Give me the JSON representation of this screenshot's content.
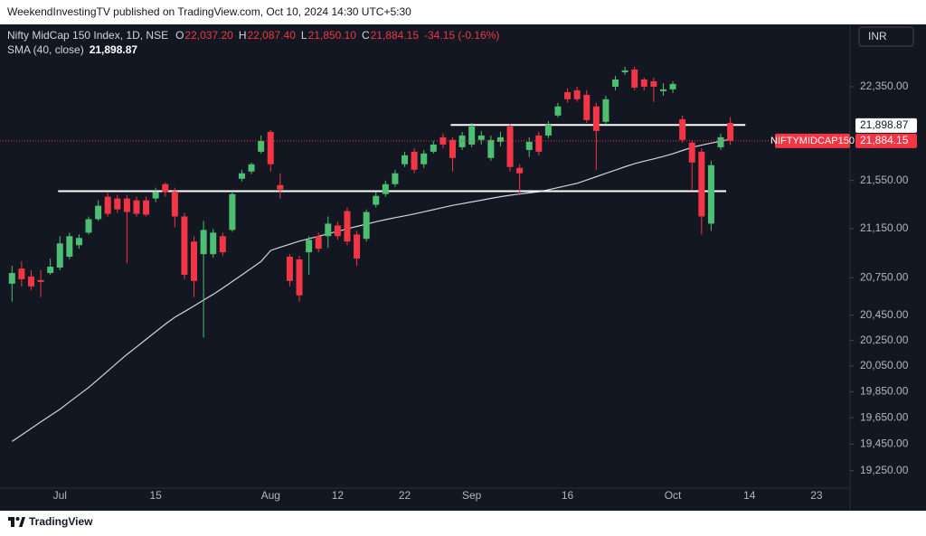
{
  "header": {
    "publisher": "WeekendInvestingTV published on TradingView.com, Oct 10, 2024 14:30 UTC+5:30",
    "footer": "TradingView"
  },
  "chart_data": {
    "type": "candlestick",
    "legend": {
      "symbol": "Nifty MidCap 150 Index, 1D, NSE",
      "fields": [
        {
          "key": "O",
          "text": "22,037.20"
        },
        {
          "key": "H",
          "text": "22,087.40"
        },
        {
          "key": "L",
          "text": "21,850.10"
        },
        {
          "key": "C",
          "text": "21,884.15"
        }
      ],
      "change": "-34.15 (-0.16%)"
    },
    "currency": "INR",
    "categories": [
      null,
      null,
      null,
      null,
      null,
      "Jul",
      null,
      null,
      null,
      null,
      null,
      null,
      null,
      null,
      null,
      "15",
      null,
      null,
      null,
      null,
      null,
      null,
      null,
      null,
      null,
      null,
      null,
      "Aug",
      null,
      null,
      null,
      null,
      null,
      null,
      "12",
      null,
      null,
      null,
      null,
      null,
      null,
      "22",
      null,
      null,
      null,
      null,
      null,
      null,
      "Sep",
      null,
      null,
      null,
      null,
      null,
      null,
      null,
      null,
      null,
      "16",
      null,
      null,
      null,
      null,
      null,
      null,
      null,
      null,
      null,
      null,
      "Oct",
      null,
      null,
      null,
      null,
      null,
      null,
      null,
      "14",
      null,
      null,
      null,
      null,
      null,
      null,
      "23",
      null,
      null,
      null
    ],
    "series": [
      {
        "name": "NIFTYMIDCAP150",
        "up_color": "#4dbf73",
        "down_color": "#f23645",
        "last_label": "21,884.15",
        "open": [
          20702,
          20824,
          20760,
          20731,
          20788,
          20832,
          20920,
          21014,
          21117,
          21228,
          21414,
          21399,
          21399,
          21384,
          21384,
          21399,
          21519,
          21459,
          21250,
          21044,
          20941,
          20941,
          21088,
          21139,
          21564,
          21625,
          21792,
          21961,
          21511,
          20920,
          20898,
          20956,
          21088,
          21088,
          21176,
          21295,
          21102,
          21066,
          21347,
          21436,
          21519,
          21686,
          21792,
          21686,
          21792,
          21915,
          21892,
          21830,
          21853,
          21892,
          21739,
          21876,
          22007,
          21655,
          21807,
          21930,
          21930,
          22101,
          22303,
          22319,
          22280,
          22179,
          22046,
          22350,
          22476,
          22500,
          22413,
          22397,
          22311,
          22327,
          22069,
          21869,
          21792,
          21191,
          21830,
          22037.2,
          null,
          null,
          null,
          null,
          null,
          null,
          null,
          null,
          null,
          null,
          null,
          null
        ],
        "high": [
          20846,
          20883,
          20810,
          20810,
          20905,
          21088,
          21117,
          21102,
          21250,
          21384,
          21444,
          21429,
          21429,
          21414,
          21414,
          21489,
          21534,
          21489,
          21280,
          21088,
          21213,
          21147,
          21117,
          21459,
          21640,
          21701,
          21930,
          21976,
          21610,
          20941,
          20927,
          21088,
          21117,
          21250,
          21206,
          21324,
          21132,
          21309,
          21451,
          21549,
          21640,
          21792,
          21822,
          21807,
          21884,
          21946,
          21915,
          21961,
          22038,
          21969,
          21930,
          21961,
          22030,
          21686,
          21915,
          21961,
          22054,
          22210,
          22334,
          22350,
          22319,
          22210,
          22272,
          22445,
          22524,
          22524,
          22429,
          22429,
          22381,
          22397,
          22101,
          21892,
          21822,
          21716,
          21946,
          22087.4,
          null,
          null,
          null,
          null,
          null,
          null,
          null,
          null,
          null,
          null,
          null,
          null
        ],
        "low": [
          20558,
          20680,
          20651,
          20594,
          20774,
          20810,
          20898,
          20985,
          21102,
          21213,
          21250,
          21280,
          20868,
          21250,
          21250,
          21369,
          21414,
          21161,
          20738,
          20594,
          20273,
          20912,
          20927,
          21124,
          21541,
          21602,
          21777,
          21625,
          21399,
          20680,
          20558,
          20774,
          20956,
          20992,
          21058,
          21014,
          20846,
          21044,
          21324,
          21414,
          21496,
          21663,
          21610,
          21655,
          21777,
          21822,
          21625,
          21807,
          21830,
          21853,
          21716,
          21838,
          21625,
          21436,
          21747,
          21762,
          21907,
          22085,
          22210,
          22218,
          22038,
          21640,
          22022,
          22319,
          22452,
          22319,
          22319,
          22218,
          22272,
          22296,
          21869,
          21474,
          21102,
          21132,
          21807,
          21850.1,
          null,
          null,
          null,
          null,
          null,
          null,
          null,
          null,
          null,
          null,
          null,
          null
        ],
        "close": [
          20788,
          20738,
          20680,
          20716,
          20839,
          21029,
          21088,
          21073,
          21228,
          21339,
          21272,
          21309,
          21287,
          21272,
          21265,
          21451,
          21451,
          21250,
          20774,
          20724,
          21139,
          21117,
          20956,
          21436,
          21610,
          21686,
          21884,
          21686,
          21474,
          20724,
          20608,
          21058,
          20985,
          21191,
          21088,
          21044,
          20905,
          21287,
          21421,
          21519,
          21610,
          21762,
          21640,
          21777,
          21853,
          21853,
          21739,
          21930,
          22007,
          21930,
          21892,
          21915,
          21663,
          21610,
          21876,
          21792,
          22022,
          22179,
          22241,
          22241,
          22062,
          21969,
          22241,
          22413,
          22492,
          22342,
          22350,
          22350,
          22327,
          22374,
          21892,
          21701,
          21250,
          21678,
          21915,
          21884.15,
          null,
          null,
          null,
          null,
          null,
          null,
          null,
          null,
          null,
          null,
          null,
          null
        ]
      }
    ],
    "overlays": [
      {
        "name": "SMA (40, close)",
        "color": "#d1d4dc",
        "last_label": "21,898.87",
        "values": [
          19470,
          19519,
          19569,
          19618,
          19667,
          19716,
          19771,
          19827,
          19883,
          19946,
          20011,
          20076,
          20140,
          20199,
          20259,
          20319,
          20379,
          20433,
          20478,
          20523,
          20570,
          20616,
          20666,
          20720,
          20773,
          20827,
          20881,
          20971,
          20997,
          21022,
          21047,
          21067,
          21087,
          21108,
          21128,
          21148,
          21168,
          21187,
          21207,
          21224,
          21240,
          21255,
          21271,
          21289,
          21306,
          21324,
          21342,
          21356,
          21371,
          21385,
          21400,
          21414,
          21426,
          21436,
          21446,
          21456,
          21472,
          21490,
          21508,
          21526,
          21553,
          21581,
          21609,
          21637,
          21665,
          21691,
          21712,
          21731,
          21752,
          21775,
          21802,
          21829,
          21848,
          21865,
          21881,
          21898.87,
          null,
          null,
          null,
          null,
          null,
          null,
          null,
          null,
          null,
          null,
          null,
          null
        ]
      }
    ],
    "hlines": [
      21460,
      22020
    ],
    "log_scale": true,
    "grid": false,
    "ylim": [
      19120,
      22890
    ],
    "yticks": [
      {
        "value": 22350,
        "label": "22,350.00"
      },
      {
        "value": 21550,
        "label": "21,550.00"
      },
      {
        "value": 21150,
        "label": "21,150.00"
      },
      {
        "value": 20750,
        "label": "20,750.00"
      },
      {
        "value": 20450,
        "label": "20,450.00"
      },
      {
        "value": 20250,
        "label": "20,250.00"
      },
      {
        "value": 20050,
        "label": "20,050.00"
      },
      {
        "value": 19850,
        "label": "19,850.00"
      },
      {
        "value": 19650,
        "label": "19,650.00"
      },
      {
        "value": 19450,
        "label": "19,450.00"
      },
      {
        "value": 19250,
        "label": "19,250.00"
      }
    ]
  }
}
